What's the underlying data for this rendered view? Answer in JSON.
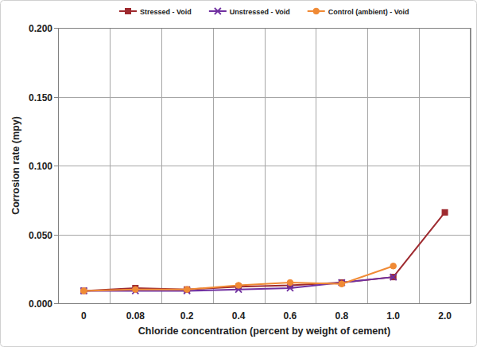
{
  "chart_data": {
    "type": "line",
    "x_label": "Chloride concentration (percent by weight of cement)",
    "y_label": "Corrosion rate (mpy)",
    "categories": [
      "0",
      "0.08",
      "0.2",
      "0.4",
      "0.6",
      "0.8",
      "1.0",
      "2.0"
    ],
    "series": [
      {
        "name": "Stressed - Void",
        "color": "#9e2a2f",
        "marker": "square",
        "line_style": "solid",
        "values": [
          0.009,
          0.011,
          0.01,
          0.012,
          0.013,
          0.015,
          0.019,
          0.066
        ]
      },
      {
        "name": "Unstressed - Void",
        "color": "#7030a0",
        "marker": "x",
        "line_style": "solid",
        "values": [
          0.009,
          0.009,
          0.009,
          0.01,
          0.011,
          0.015,
          0.019,
          null
        ]
      },
      {
        "name": "Control (ambient) - Void",
        "color": "#f08a35",
        "marker": "circle",
        "line_style": "solid",
        "values": [
          0.009,
          0.01,
          0.01,
          0.013,
          0.015,
          0.014,
          0.027,
          null
        ]
      }
    ],
    "ylim": [
      0,
      0.2
    ],
    "yticks": [
      {
        "value": 0,
        "label": "0.000"
      },
      {
        "value": 0.05,
        "label": "0.050"
      },
      {
        "value": 0.1,
        "label": "0.100"
      },
      {
        "value": 0.15,
        "label": "0.150"
      },
      {
        "value": 0.2,
        "label": "0.200"
      }
    ],
    "grid": true,
    "legend": "top"
  }
}
